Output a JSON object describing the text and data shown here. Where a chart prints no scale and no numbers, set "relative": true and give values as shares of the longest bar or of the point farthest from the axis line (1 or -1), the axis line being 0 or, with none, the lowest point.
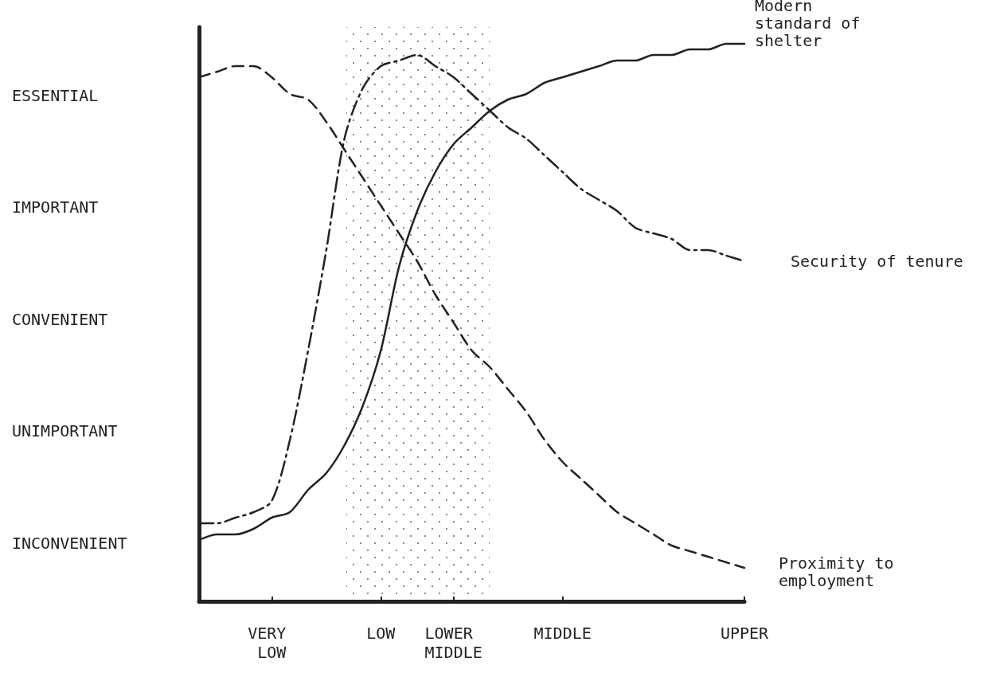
{
  "chart_data": {
    "type": "line",
    "relative": true,
    "categories": [
      null,
      null,
      null,
      null,
      "VERY LOW",
      null,
      null,
      null,
      null,
      null,
      "LOW",
      null,
      null,
      null,
      "LOWER MIDDLE",
      null,
      null,
      null,
      null,
      null,
      "MIDDLE",
      null,
      null,
      null,
      null,
      null,
      null,
      null,
      null,
      null,
      "UPPER"
    ],
    "annotations": [
      "ESSENTIAL",
      "IMPORTANT",
      "CONVENIENT",
      "UNIMPORTANT",
      "INCONVENIENT"
    ],
    "grid": false,
    "legend": false,
    "marker": "none",
    "series": [
      {
        "name": "Modern standard of shelter",
        "color": "#222222",
        "line_style": "solid",
        "values": [
          0.11,
          0.12,
          0.12,
          0.13,
          0.15,
          0.16,
          0.2,
          0.23,
          0.28,
          0.35,
          0.45,
          0.6,
          0.7,
          0.77,
          0.82,
          0.85,
          0.88,
          0.9,
          0.91,
          0.93,
          0.94,
          0.95,
          0.96,
          0.97,
          0.97,
          0.98,
          0.98,
          0.99,
          0.99,
          1,
          1
        ]
      },
      {
        "name": "Security of tenure",
        "color": "#222222",
        "line_style": "dashdot",
        "values": [
          0.14,
          0.14,
          0.15,
          0.16,
          0.18,
          0.29,
          0.45,
          0.63,
          0.83,
          0.92,
          0.96,
          0.97,
          0.98,
          0.96,
          0.94,
          0.91,
          0.88,
          0.85,
          0.83,
          0.8,
          0.77,
          0.74,
          0.72,
          0.7,
          0.67,
          0.66,
          0.65,
          0.63,
          0.63,
          0.62,
          0.61
        ]
      },
      {
        "name": "Proximity to employment",
        "color": "#222222",
        "line_style": "dashed",
        "values": [
          0.94,
          0.95,
          0.96,
          0.96,
          0.94,
          0.91,
          0.9,
          0.86,
          0.81,
          0.76,
          0.71,
          0.66,
          0.61,
          0.55,
          0.5,
          0.45,
          0.42,
          0.38,
          0.34,
          0.29,
          0.25,
          0.22,
          0.19,
          0.16,
          0.14,
          0.12,
          0.1,
          0.09,
          0.08,
          0.07,
          0.06
        ]
      }
    ]
  }
}
